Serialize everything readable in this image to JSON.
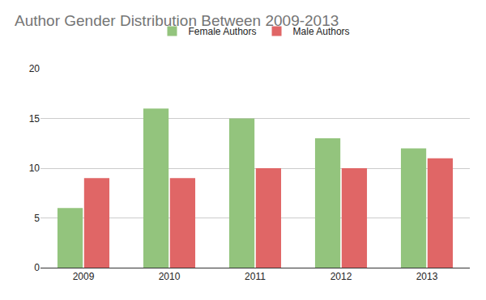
{
  "chart_data": {
    "type": "bar",
    "title": "Author Gender Distribution Between 2009-2013",
    "categories": [
      "2009",
      "2010",
      "2011",
      "2012",
      "2013"
    ],
    "series": [
      {
        "name": "Female Authors",
        "color": "#93c47d",
        "values": [
          6,
          16,
          15,
          13,
          12
        ]
      },
      {
        "name": "Male Authors",
        "color": "#e06666",
        "values": [
          9,
          9,
          10,
          10,
          11
        ]
      }
    ],
    "ylim": [
      0,
      20
    ],
    "yticks": [
      0,
      5,
      10,
      15,
      20
    ],
    "grid": true,
    "legend": "top"
  }
}
